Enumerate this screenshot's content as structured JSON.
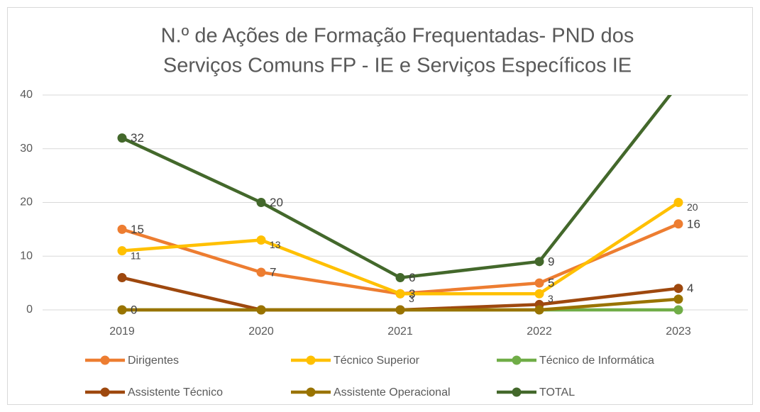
{
  "chart_data": {
    "type": "line",
    "title": [
      "N.º de Ações de Formação Frequentadas- PND dos",
      "Serviços Comuns FP - IE e Serviços Específicos IE"
    ],
    "categories": [
      "2019",
      "2020",
      "2021",
      "2022",
      "2023"
    ],
    "ylim": [
      0,
      40
    ],
    "yticks": [
      0,
      10,
      20,
      30,
      40
    ],
    "grid": true,
    "legend": "bottom",
    "series": [
      {
        "name": "Dirigentes",
        "color": "#ed7d31",
        "values": [
          15,
          7,
          3,
          5,
          16
        ],
        "value_labels": [
          "15",
          "7",
          "3",
          "5",
          "16"
        ]
      },
      {
        "name": "Técnico Superior",
        "color": "#ffc000",
        "values": [
          11,
          13,
          3,
          3,
          20
        ],
        "value_labels": [
          "11",
          "13",
          "3",
          "3",
          "20"
        ]
      },
      {
        "name": "Técnico de Informática",
        "color": "#70ad47",
        "values": [
          0,
          0,
          0,
          0,
          0
        ]
      },
      {
        "name": "Assistente Técnico",
        "color": "#9e480e",
        "values": [
          6,
          0,
          0,
          1,
          4
        ],
        "value_labels": [
          null,
          null,
          null,
          null,
          "4"
        ]
      },
      {
        "name": "Assistente Operacional",
        "color": "#997300",
        "values": [
          0,
          0,
          0,
          0,
          2
        ],
        "value_labels": [
          "0",
          null,
          null,
          null,
          null
        ]
      },
      {
        "name": "TOTAL",
        "color": "#43682b",
        "values": [
          32,
          20,
          6,
          9,
          42
        ],
        "value_labels": [
          "32",
          "20",
          "6",
          "9",
          null
        ]
      }
    ]
  }
}
